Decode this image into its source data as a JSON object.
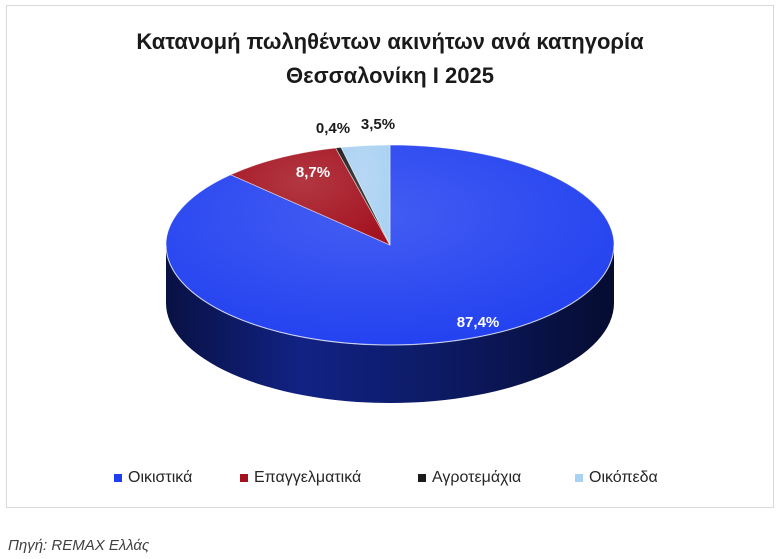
{
  "chart_data": {
    "type": "pie",
    "three_d": true,
    "title": "Κατανομή πωληθέντων ακινήτων ανά κατηγορία",
    "subtitle": "Θεσσαλονίκη I 2025",
    "categories": [
      "Οικιστικά",
      "Επαγγελματικά",
      "Αγροτεμάχια",
      "Οικόπεδα"
    ],
    "values": [
      87.4,
      8.7,
      0.4,
      3.5
    ],
    "data_labels": [
      "87,4%",
      "8,7%",
      "0,4%",
      "3,5%"
    ],
    "colors": [
      "#1f3ef0",
      "#a3111e",
      "#1b1b1b",
      "#a9d1f2"
    ],
    "legend": "bottom"
  },
  "source": "Πηγή: REMAX Ελλάς"
}
